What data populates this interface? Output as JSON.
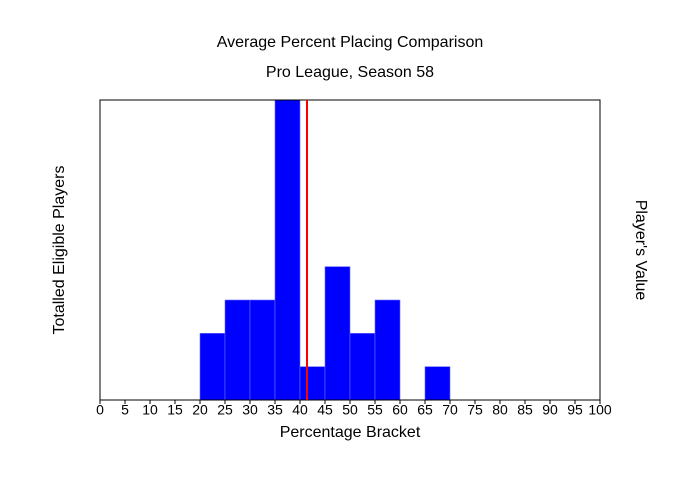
{
  "chart_data": {
    "type": "histogram",
    "title": "Average Percent Placing Comparison",
    "subtitle": "Pro League, Season 58",
    "x_label": "Percentage Bracket",
    "y_label": "Totalled Eligible Players",
    "y2_label": "Player's Value",
    "bins": [
      0,
      5,
      10,
      15,
      20,
      25,
      30,
      35,
      40,
      45,
      50,
      55,
      60,
      65,
      70,
      75,
      80,
      85,
      90,
      95,
      100
    ],
    "values": [
      0,
      0,
      0,
      0,
      2,
      3,
      3,
      9,
      1,
      4,
      2,
      3,
      0,
      1,
      0,
      0,
      0,
      0,
      0,
      0
    ],
    "color": "#0000ff",
    "y_label_color": "#0000aa",
    "player_value": 41.4,
    "player_value_color": "#ff0000",
    "xlim": [
      0,
      100
    ],
    "xticks": [
      0,
      5,
      10,
      15,
      20,
      25,
      30,
      35,
      40,
      45,
      50,
      55,
      60,
      65,
      70,
      75,
      80,
      85,
      90,
      95,
      100
    ],
    "ylim": [
      0,
      9
    ]
  }
}
